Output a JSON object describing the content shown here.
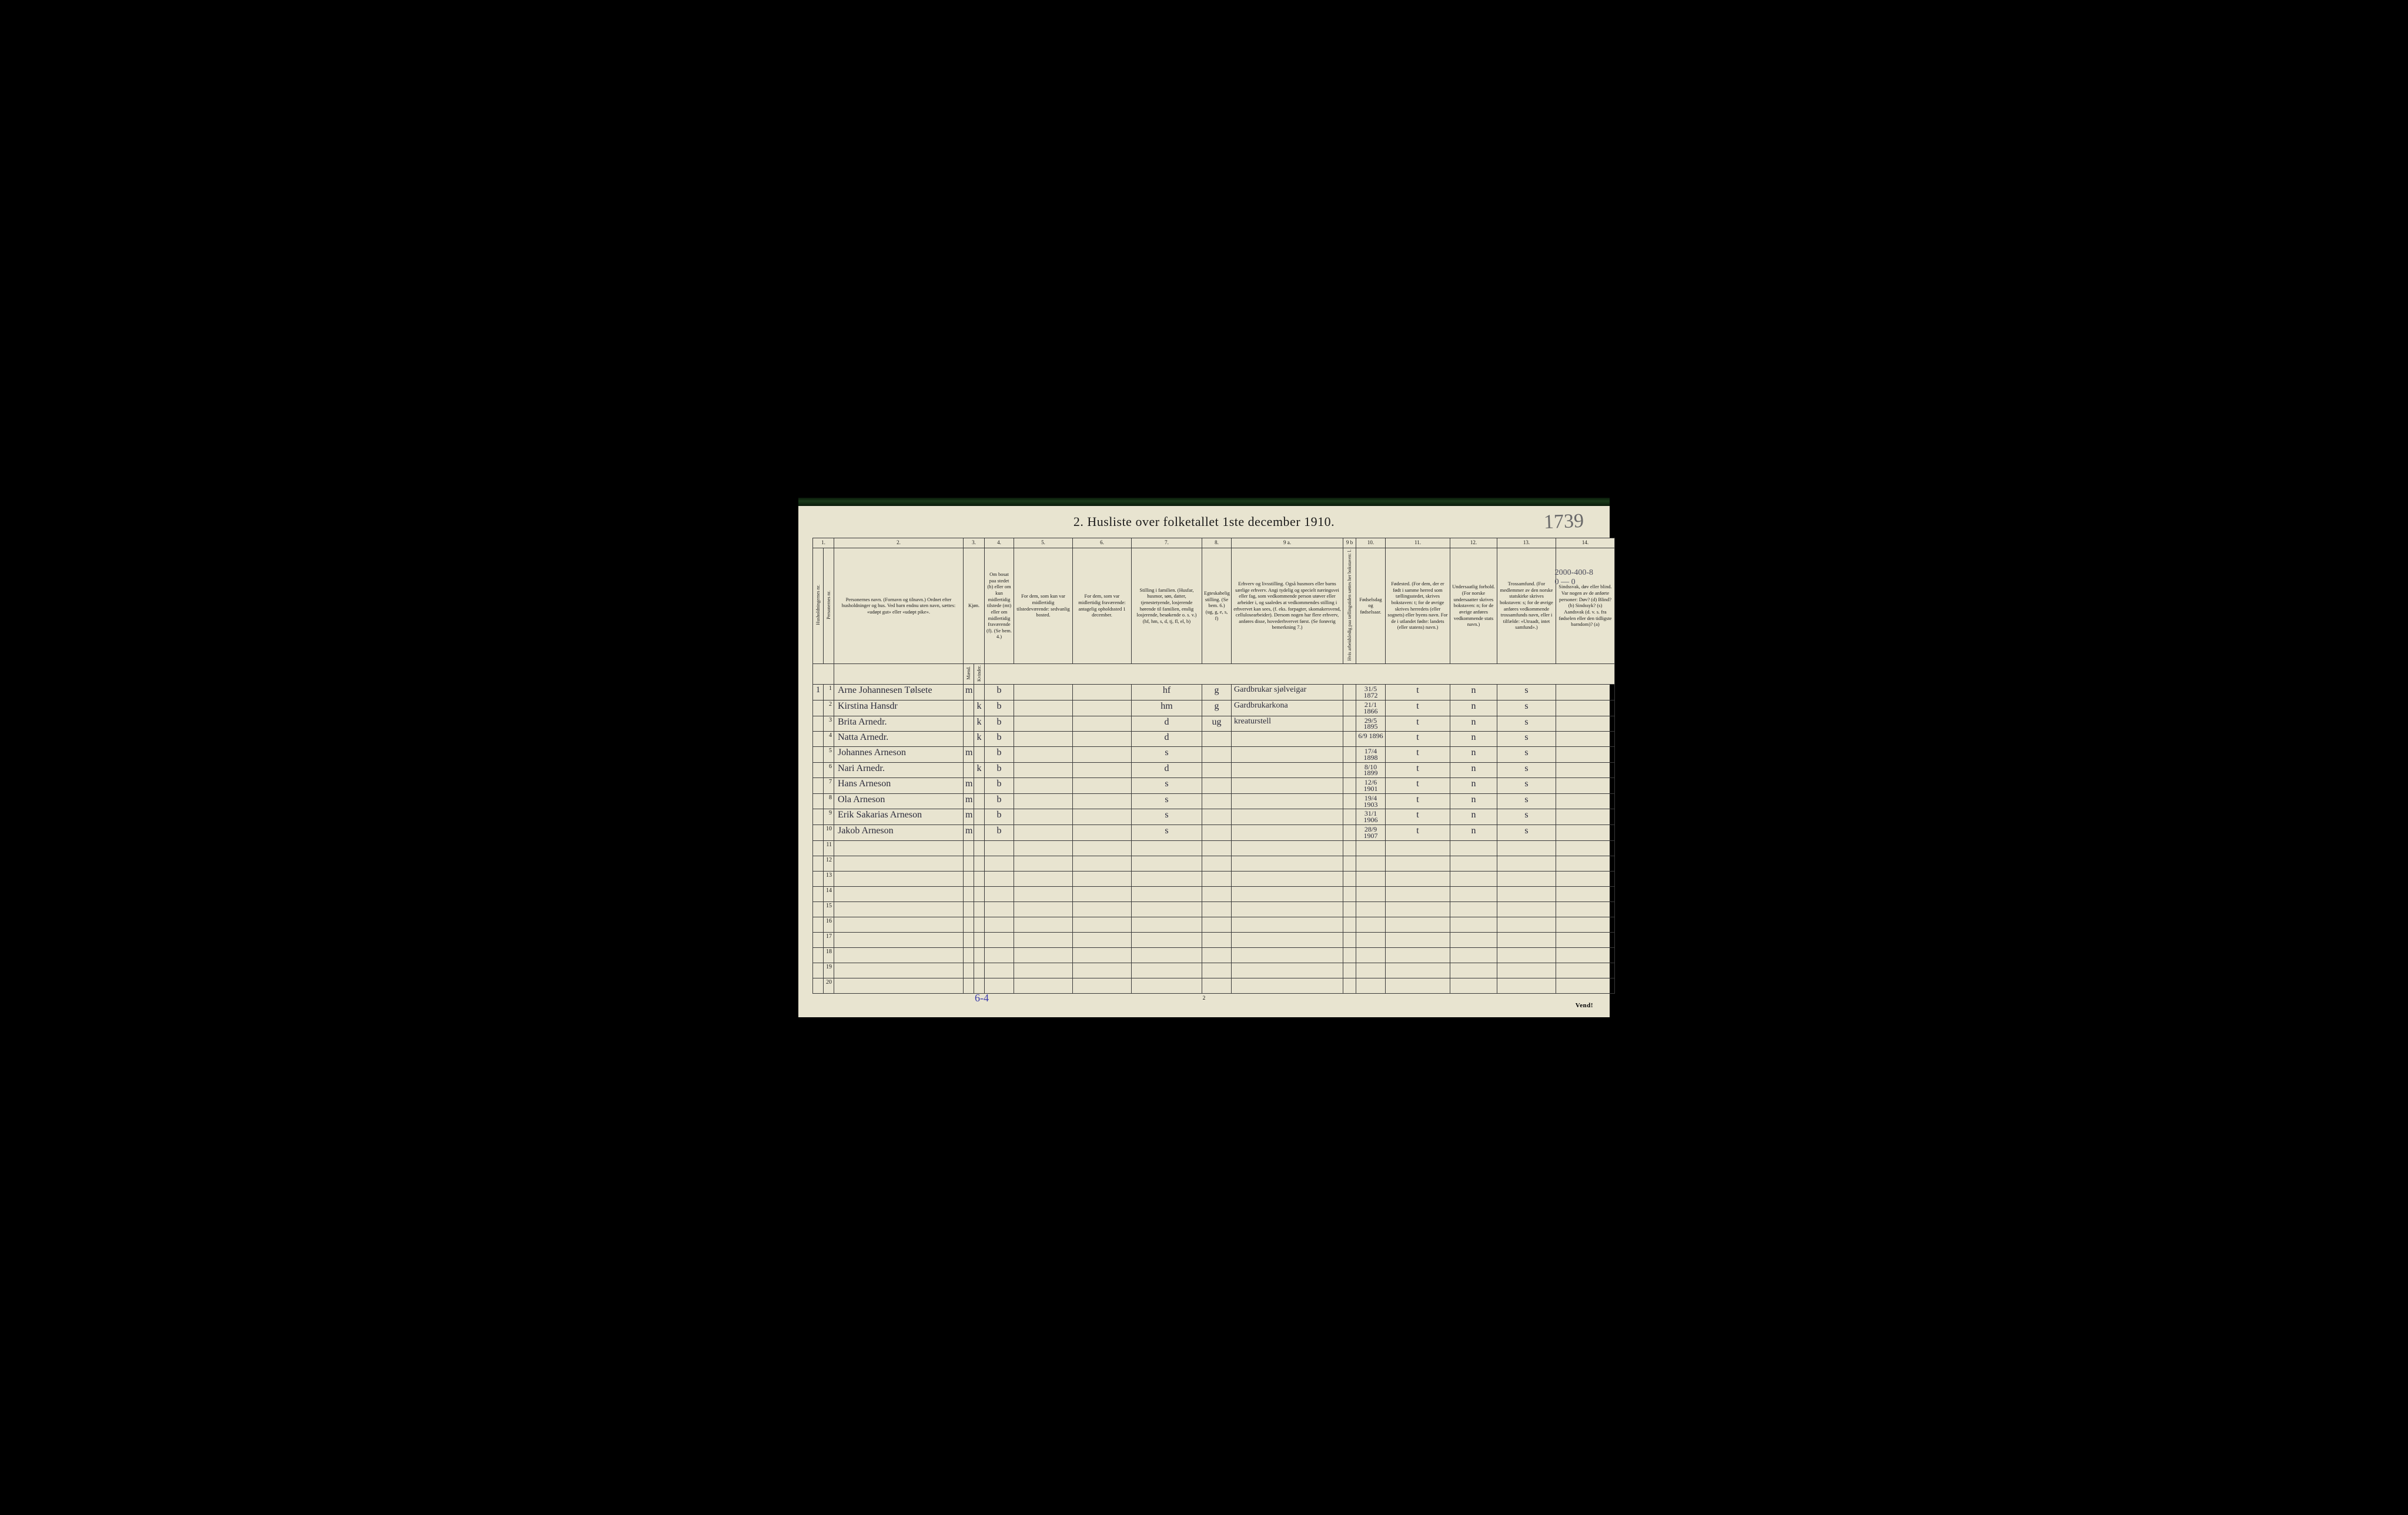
{
  "title": "2. Husliste over folketallet 1ste december 1910.",
  "handwritten_page_number": "1739",
  "corner_note_line1": "2000-400-8",
  "corner_note_line2": "0 — 0",
  "footer_annotation": "6-4",
  "page_foot_number": "2",
  "vend_text": "Vend!",
  "column_numbers": [
    "1.",
    "2.",
    "3.",
    "4.",
    "5.",
    "6.",
    "7.",
    "8.",
    "9 a.",
    "9 b",
    "10.",
    "11.",
    "12.",
    "13.",
    "14."
  ],
  "headers": {
    "c1": "Husholdningernes nr.",
    "c1b": "Personernes nr.",
    "c2": "Personernes navn.\n(Fornavn og tilnavn.)\nOrdnet efter husholdninger og hus.\nVed barn endnu uten navn, sættes: «udøpt gut» eller «udøpt pike».",
    "c3": "Kjøn.",
    "c3a": "Mænd.",
    "c3b": "Kvinder.",
    "c3sub": "m. | k.",
    "c4": "Om bosat paa stedet (b) eller om kun midlertidig tilstede (mt) eller om midlertidig fraværende (f).\n(Se bem. 4.)",
    "c5": "For dem, som kun var midlertidig tilstedeværende:\nsedvanlig bosted.",
    "c6": "For dem, som var midlertidig fraværende:\nantagelig opholdssted 1 december.",
    "c7": "Stilling i familien.\n(Husfar, husmor, søn, datter, tjenestetyende, losjerende hørende til familien, enslig losjerende, besøkende o. s. v.)\n(hf, hm, s, d, tj, fl, el, b)",
    "c8": "Egteskabelig stilling.\n(Se bem. 6.)\n(ug, g, e, s, f)",
    "c9a": "Erhverv og livsstilling.\nOgså husmors eller barns særlige erhverv. Angi tydelig og specielt næringsvei eller fag, som vedkommende person utøver eller arbeider i, og saaledes at vedkommendes stilling i erhvervet kan sees, (f. eks. forpagter, skomakersvend, cellulosearbeider). Dersom nogen har flere erhverv, anføres disse, hovederhvervet først.\n(Se forøvrig bemerkning 7.)",
    "c9b": "Hvis arbeidsledig paa tællingstiden sættes her bokstaven: l.",
    "c10": "Fødselsdag og fødselsaar.",
    "c11": "Fødested.\n(For dem, der er født i samme herred som tællingsstedet, skrives bokstaven: t; for de øvrige skrives herredets (eller sognets) eller byens navn. For de i utlandet fødte: landets (eller statens) navn.)",
    "c12": "Undersaatlig forhold.\n(For norske undersaatter skrives bokstaven: n; for de øvrige anføres vedkommende stats navn.)",
    "c13": "Trossamfund.\n(For medlemmer av den norske statskirke skrives bokstaven: s; for de øvrige anføres vedkommende trossamfunds navn, eller i tilfælde: «Utraadt, intet samfund».)",
    "c14": "Sindssvak, døv eller blind.\nVar nogen av de anførte personer:\nDøv? (d)\nBlind? (b)\nSindssyk? (s)\nAandsvak (d. v. s. fra fødselen eller den tidligste barndom)? (a)"
  },
  "col_widths": {
    "c1": 18,
    "c1b": 18,
    "c2": 220,
    "c3a": 18,
    "c3b": 18,
    "c4": 50,
    "c5": 100,
    "c6": 100,
    "c7": 120,
    "c8": 50,
    "c9a": 190,
    "c9b": 22,
    "c10": 50,
    "c11": 110,
    "c12": 80,
    "c13": 100,
    "c14": 100
  },
  "rows": [
    {
      "h": "1",
      "n": "1",
      "name": "Arne Johannesen Tølsete",
      "m": "m",
      "k": "",
      "res": "b",
      "away": "",
      "absent": "",
      "fam": "hf",
      "mar": "g",
      "occ": "Gardbrukar sjølveigar",
      "led": "",
      "dob": "31/5 1872",
      "birth": "t",
      "nat": "n",
      "rel": "s",
      "dis": ""
    },
    {
      "h": "",
      "n": "2",
      "name": "Kirstina Hansdr",
      "m": "",
      "k": "k",
      "res": "b",
      "away": "",
      "absent": "",
      "fam": "hm",
      "mar": "g",
      "occ": "Gardbrukarkona",
      "led": "",
      "dob": "21/1 1866",
      "birth": "t",
      "nat": "n",
      "rel": "s",
      "dis": ""
    },
    {
      "h": "",
      "n": "3",
      "name": "Brita Arnedr.",
      "m": "",
      "k": "k",
      "res": "b",
      "away": "",
      "absent": "",
      "fam": "d",
      "mar": "ug",
      "occ": "kreaturstell",
      "led": "",
      "dob": "29/5 1895",
      "birth": "t",
      "nat": "n",
      "rel": "s",
      "dis": ""
    },
    {
      "h": "",
      "n": "4",
      "name": "Natta Arnedr.",
      "m": "",
      "k": "k",
      "res": "b",
      "away": "",
      "absent": "",
      "fam": "d",
      "mar": "",
      "occ": "",
      "led": "",
      "dob": "6/9 1896",
      "birth": "t",
      "nat": "n",
      "rel": "s",
      "dis": ""
    },
    {
      "h": "",
      "n": "5",
      "name": "Johannes Arneson",
      "m": "m",
      "k": "",
      "res": "b",
      "away": "",
      "absent": "",
      "fam": "s",
      "mar": "",
      "occ": "",
      "led": "",
      "dob": "17/4 1898",
      "birth": "t",
      "nat": "n",
      "rel": "s",
      "dis": ""
    },
    {
      "h": "",
      "n": "6",
      "name": "Nari Arnedr.",
      "m": "",
      "k": "k",
      "res": "b",
      "away": "",
      "absent": "",
      "fam": "d",
      "mar": "",
      "occ": "",
      "led": "",
      "dob": "8/10 1899",
      "birth": "t",
      "nat": "n",
      "rel": "s",
      "dis": ""
    },
    {
      "h": "",
      "n": "7",
      "name": "Hans Arneson",
      "m": "m",
      "k": "",
      "res": "b",
      "away": "",
      "absent": "",
      "fam": "s",
      "mar": "",
      "occ": "",
      "led": "",
      "dob": "12/6 1901",
      "birth": "t",
      "nat": "n",
      "rel": "s",
      "dis": ""
    },
    {
      "h": "",
      "n": "8",
      "name": "Ola Arneson",
      "m": "m",
      "k": "",
      "res": "b",
      "away": "",
      "absent": "",
      "fam": "s",
      "mar": "",
      "occ": "",
      "led": "",
      "dob": "19/4 1903",
      "birth": "t",
      "nat": "n",
      "rel": "s",
      "dis": ""
    },
    {
      "h": "",
      "n": "9",
      "name": "Erik Sakarias Arneson",
      "m": "m",
      "k": "",
      "res": "b",
      "away": "",
      "absent": "",
      "fam": "s",
      "mar": "",
      "occ": "",
      "led": "",
      "dob": "31/1 1906",
      "birth": "t",
      "nat": "n",
      "rel": "s",
      "dis": ""
    },
    {
      "h": "",
      "n": "10",
      "name": "Jakob Arneson",
      "m": "m",
      "k": "",
      "res": "b",
      "away": "",
      "absent": "",
      "fam": "s",
      "mar": "",
      "occ": "",
      "led": "",
      "dob": "28/9 1907",
      "birth": "t",
      "nat": "n",
      "rel": "s",
      "dis": ""
    },
    {
      "h": "",
      "n": "11",
      "name": "",
      "m": "",
      "k": "",
      "res": "",
      "away": "",
      "absent": "",
      "fam": "",
      "mar": "",
      "occ": "",
      "led": "",
      "dob": "",
      "birth": "",
      "nat": "",
      "rel": "",
      "dis": ""
    },
    {
      "h": "",
      "n": "12",
      "name": "",
      "m": "",
      "k": "",
      "res": "",
      "away": "",
      "absent": "",
      "fam": "",
      "mar": "",
      "occ": "",
      "led": "",
      "dob": "",
      "birth": "",
      "nat": "",
      "rel": "",
      "dis": ""
    },
    {
      "h": "",
      "n": "13",
      "name": "",
      "m": "",
      "k": "",
      "res": "",
      "away": "",
      "absent": "",
      "fam": "",
      "mar": "",
      "occ": "",
      "led": "",
      "dob": "",
      "birth": "",
      "nat": "",
      "rel": "",
      "dis": ""
    },
    {
      "h": "",
      "n": "14",
      "name": "",
      "m": "",
      "k": "",
      "res": "",
      "away": "",
      "absent": "",
      "fam": "",
      "mar": "",
      "occ": "",
      "led": "",
      "dob": "",
      "birth": "",
      "nat": "",
      "rel": "",
      "dis": ""
    },
    {
      "h": "",
      "n": "15",
      "name": "",
      "m": "",
      "k": "",
      "res": "",
      "away": "",
      "absent": "",
      "fam": "",
      "mar": "",
      "occ": "",
      "led": "",
      "dob": "",
      "birth": "",
      "nat": "",
      "rel": "",
      "dis": ""
    },
    {
      "h": "",
      "n": "16",
      "name": "",
      "m": "",
      "k": "",
      "res": "",
      "away": "",
      "absent": "",
      "fam": "",
      "mar": "",
      "occ": "",
      "led": "",
      "dob": "",
      "birth": "",
      "nat": "",
      "rel": "",
      "dis": ""
    },
    {
      "h": "",
      "n": "17",
      "name": "",
      "m": "",
      "k": "",
      "res": "",
      "away": "",
      "absent": "",
      "fam": "",
      "mar": "",
      "occ": "",
      "led": "",
      "dob": "",
      "birth": "",
      "nat": "",
      "rel": "",
      "dis": ""
    },
    {
      "h": "",
      "n": "18",
      "name": "",
      "m": "",
      "k": "",
      "res": "",
      "away": "",
      "absent": "",
      "fam": "",
      "mar": "",
      "occ": "",
      "led": "",
      "dob": "",
      "birth": "",
      "nat": "",
      "rel": "",
      "dis": ""
    },
    {
      "h": "",
      "n": "19",
      "name": "",
      "m": "",
      "k": "",
      "res": "",
      "away": "",
      "absent": "",
      "fam": "",
      "mar": "",
      "occ": "",
      "led": "",
      "dob": "",
      "birth": "",
      "nat": "",
      "rel": "",
      "dis": ""
    },
    {
      "h": "",
      "n": "20",
      "name": "",
      "m": "",
      "k": "",
      "res": "",
      "away": "",
      "absent": "",
      "fam": "",
      "mar": "",
      "occ": "",
      "led": "",
      "dob": "",
      "birth": "",
      "nat": "",
      "rel": "",
      "dis": ""
    }
  ],
  "colors": {
    "page_bg": "#e8e4d0",
    "ink": "#1a1a1a",
    "handwriting": "#2a2a3a",
    "blue_pencil": "#3a3aaa",
    "border": "#3a3a3a"
  },
  "typography": {
    "title_fontsize_pt": 18,
    "header_fontsize_pt": 7,
    "body_handwriting_fontsize_pt": 13
  }
}
